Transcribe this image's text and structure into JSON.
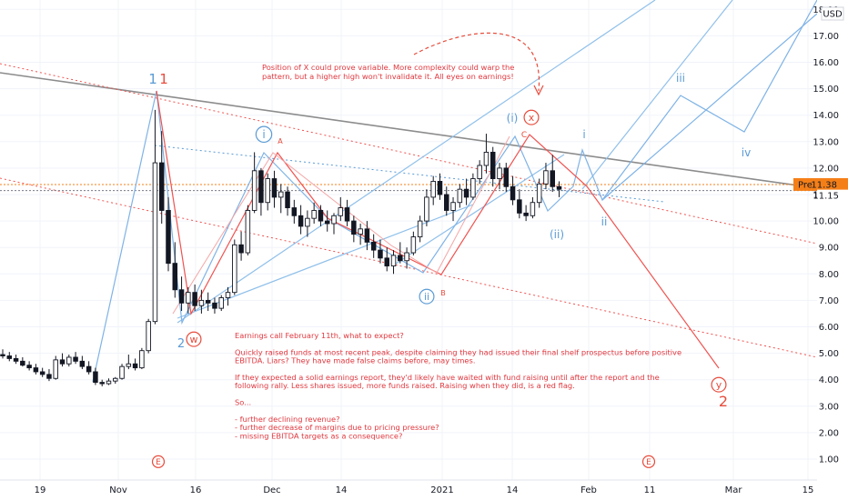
{
  "chart_data": {
    "type": "candlestick",
    "currency": "USD",
    "ylim": [
      0.6,
      18.0
    ],
    "y_ticks": [
      1,
      2,
      3,
      4,
      5,
      6,
      7,
      8,
      9,
      10,
      11,
      12,
      13,
      14,
      15,
      16,
      17,
      18
    ],
    "x_tick_labels": [
      "19",
      "Nov",
      "16",
      "Dec",
      "14",
      "2021",
      "14",
      "Feb",
      "11",
      "Mar",
      "15"
    ],
    "price_badges": [
      {
        "label": "Pre",
        "value": "11.38",
        "color": "#f57f17"
      },
      {
        "value": "11.15",
        "color": "#131722"
      }
    ],
    "candles": [
      [
        4.95,
        5.15,
        4.8,
        4.9
      ],
      [
        4.9,
        5.05,
        4.7,
        4.8
      ],
      [
        4.8,
        4.95,
        4.6,
        4.7
      ],
      [
        4.7,
        4.85,
        4.5,
        4.55
      ],
      [
        4.55,
        4.7,
        4.35,
        4.45
      ],
      [
        4.45,
        4.6,
        4.2,
        4.3
      ],
      [
        4.3,
        4.45,
        4.1,
        4.2
      ],
      [
        4.2,
        4.4,
        3.95,
        4.05
      ],
      [
        4.05,
        4.9,
        4.0,
        4.75
      ],
      [
        4.75,
        5.0,
        4.5,
        4.6
      ],
      [
        4.6,
        4.95,
        4.5,
        4.85
      ],
      [
        4.85,
        5.05,
        4.6,
        4.7
      ],
      [
        4.7,
        4.9,
        4.4,
        4.5
      ],
      [
        4.5,
        4.7,
        4.2,
        4.3
      ],
      [
        4.3,
        4.45,
        3.8,
        3.9
      ],
      [
        3.9,
        4.0,
        3.75,
        3.85
      ],
      [
        3.85,
        4.05,
        3.8,
        3.95
      ],
      [
        3.95,
        4.1,
        3.85,
        4.05
      ],
      [
        4.05,
        4.6,
        4.0,
        4.5
      ],
      [
        4.5,
        4.95,
        4.4,
        4.6
      ],
      [
        4.6,
        4.8,
        4.35,
        4.45
      ],
      [
        4.45,
        5.2,
        4.4,
        5.1
      ],
      [
        5.1,
        6.3,
        5.0,
        6.2
      ],
      [
        6.2,
        14.2,
        6.1,
        12.2
      ],
      [
        12.2,
        13.4,
        9.9,
        10.4
      ],
      [
        10.4,
        10.9,
        8.1,
        8.4
      ],
      [
        8.4,
        9.2,
        7.1,
        7.4
      ],
      [
        7.4,
        7.9,
        6.6,
        6.9
      ],
      [
        6.9,
        7.5,
        6.5,
        7.3
      ],
      [
        7.3,
        7.6,
        6.6,
        6.8
      ],
      [
        6.8,
        7.4,
        6.5,
        7.0
      ],
      [
        7.0,
        7.3,
        6.6,
        6.9
      ],
      [
        6.9,
        7.1,
        6.5,
        6.7
      ],
      [
        6.7,
        7.2,
        6.6,
        7.1
      ],
      [
        7.1,
        7.5,
        6.8,
        7.3
      ],
      [
        7.3,
        9.3,
        7.2,
        9.1
      ],
      [
        9.1,
        9.6,
        8.5,
        8.8
      ],
      [
        8.8,
        10.6,
        8.7,
        10.4
      ],
      [
        10.4,
        12.6,
        10.3,
        11.9
      ],
      [
        11.9,
        12.0,
        10.2,
        10.7
      ],
      [
        10.7,
        11.8,
        10.4,
        11.6
      ],
      [
        11.6,
        11.9,
        10.5,
        10.9
      ],
      [
        10.9,
        11.4,
        10.3,
        11.1
      ],
      [
        11.1,
        11.3,
        10.2,
        10.5
      ],
      [
        10.5,
        10.8,
        9.9,
        10.2
      ],
      [
        10.2,
        10.6,
        9.5,
        9.8
      ],
      [
        9.8,
        10.4,
        9.4,
        10.1
      ],
      [
        10.1,
        10.7,
        9.9,
        10.4
      ],
      [
        10.4,
        10.6,
        9.8,
        10.0
      ],
      [
        10.0,
        10.4,
        9.6,
        9.9
      ],
      [
        9.9,
        10.3,
        9.5,
        10.2
      ],
      [
        10.2,
        10.9,
        10.0,
        10.5
      ],
      [
        10.5,
        10.8,
        9.8,
        10.0
      ],
      [
        10.0,
        10.2,
        9.2,
        9.5
      ],
      [
        9.5,
        9.9,
        9.1,
        9.7
      ],
      [
        9.7,
        10.0,
        8.9,
        9.2
      ],
      [
        9.2,
        9.5,
        8.6,
        8.9
      ],
      [
        8.9,
        9.3,
        8.4,
        8.6
      ],
      [
        8.6,
        9.0,
        8.1,
        8.3
      ],
      [
        8.3,
        8.9,
        8.0,
        8.7
      ],
      [
        8.7,
        9.2,
        8.4,
        8.5
      ],
      [
        8.5,
        9.0,
        8.2,
        8.8
      ],
      [
        8.8,
        9.6,
        8.7,
        9.4
      ],
      [
        9.4,
        10.2,
        9.2,
        10.0
      ],
      [
        10.0,
        11.2,
        9.8,
        10.9
      ],
      [
        10.9,
        11.7,
        10.6,
        11.5
      ],
      [
        11.5,
        11.8,
        10.8,
        11.0
      ],
      [
        11.0,
        11.3,
        10.2,
        10.4
      ],
      [
        10.4,
        10.9,
        10.0,
        10.7
      ],
      [
        10.7,
        11.4,
        10.5,
        11.2
      ],
      [
        11.2,
        11.6,
        10.6,
        10.9
      ],
      [
        10.9,
        11.8,
        10.8,
        11.6
      ],
      [
        11.6,
        12.3,
        11.4,
        12.1
      ],
      [
        12.1,
        13.3,
        11.8,
        12.6
      ],
      [
        12.6,
        12.8,
        11.3,
        11.6
      ],
      [
        11.6,
        12.2,
        11.2,
        12.0
      ],
      [
        12.0,
        12.2,
        11.1,
        11.3
      ],
      [
        11.3,
        11.7,
        10.6,
        10.8
      ],
      [
        10.8,
        11.2,
        10.1,
        10.3
      ],
      [
        10.3,
        10.6,
        10.0,
        10.2
      ],
      [
        10.2,
        10.9,
        10.1,
        10.7
      ],
      [
        10.7,
        11.6,
        10.5,
        11.4
      ],
      [
        11.4,
        12.2,
        11.2,
        11.9
      ],
      [
        11.9,
        12.5,
        11.1,
        11.3
      ],
      [
        11.3,
        11.5,
        10.9,
        11.2
      ]
    ]
  },
  "annotations": {
    "wave_labels": [
      {
        "text": "1",
        "color": "#5b9bd5"
      },
      {
        "text": "1",
        "color": "#e74c3c"
      },
      {
        "text": "2",
        "color": "#5b9bd5"
      },
      {
        "text": "w",
        "color": "#e74c3c"
      },
      {
        "text": "i",
        "color": "#5b9bd5"
      },
      {
        "text": "A",
        "color": "#e74c3c"
      },
      {
        "text": "ii",
        "color": "#5b9bd5"
      },
      {
        "text": "B",
        "color": "#e74c3c"
      },
      {
        "text": "(i)",
        "color": "#5b9bd5"
      },
      {
        "text": "x",
        "color": "#e74c3c"
      },
      {
        "text": "C",
        "color": "#e74c3c"
      },
      {
        "text": "(ii)",
        "color": "#5b9bd5"
      },
      {
        "text": "i",
        "color": "#5b9bd5"
      },
      {
        "text": "ii",
        "color": "#5b9bd5"
      },
      {
        "text": "iii",
        "color": "#5b9bd5"
      },
      {
        "text": "iv",
        "color": "#5b9bd5"
      },
      {
        "text": "y",
        "color": "#e74c3c"
      },
      {
        "text": "2",
        "color": "#e74c3c"
      },
      {
        "text": "E",
        "color": "#e74c3c"
      },
      {
        "text": "E",
        "color": "#e74c3c"
      }
    ],
    "top_note": [
      "Position of X could prove variable. More complexity could warp the",
      "pattern, but a higher high won't invalidate it. All eyes on earnings!"
    ],
    "bottom_note": [
      "Earnings call February 11th, what to expect?",
      "",
      "Quickly raised funds at most recent peak, despite claiming they had issued their final shelf prospectus before positive",
      "EBITDA. Liars? They have made false claims before, may times.",
      "",
      "If they expected a solid earnings report, they'd likely have waited with fund raising until after the report and the",
      "following rally. Less shares issued, more funds raised. Raising when they did, is a red flag.",
      "",
      "So...",
      "",
      "- further declining revenue?",
      "- further decrease of margins due to pricing pressure?",
      "- missing EBITDA targets as a consequence?"
    ]
  }
}
